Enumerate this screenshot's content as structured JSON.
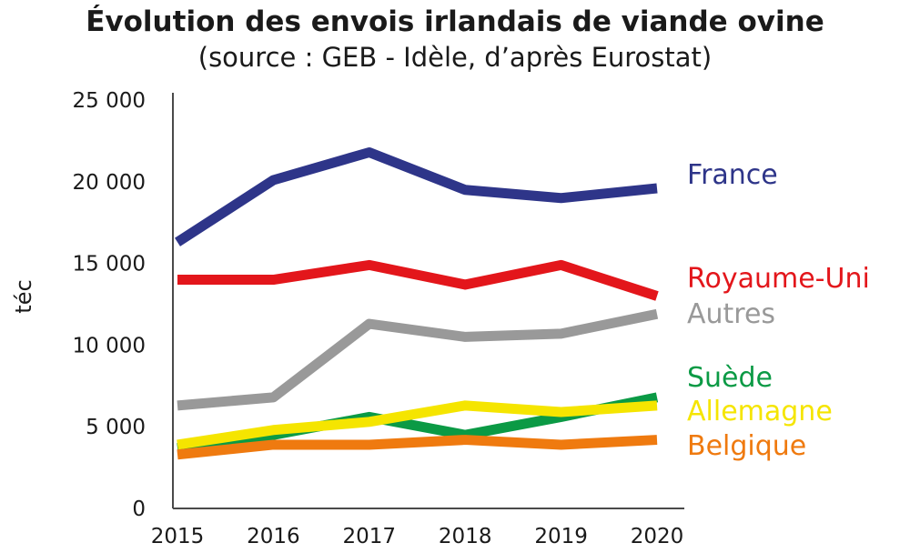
{
  "chart_data": {
    "type": "line",
    "title": "Évolution des envois irlandais de viande ovine",
    "subtitle": "(source : GEB - Idèle, d’après Eurostat)",
    "xlabel": "",
    "ylabel": "téc",
    "ylim": [
      0,
      25000
    ],
    "yticks": [
      0,
      5000,
      10000,
      15000,
      20000,
      25000
    ],
    "ytick_labels": [
      "0",
      "5 000",
      "10 000",
      "15 000",
      "20 000",
      "25 000"
    ],
    "categories": [
      "2015",
      "2016",
      "2017",
      "2018",
      "2019",
      "2020"
    ],
    "grid": false,
    "series": [
      {
        "name": "France",
        "color": "#2e3589",
        "values": [
          16300,
          20100,
          21800,
          19500,
          19000,
          19600
        ]
      },
      {
        "name": "Royaume-Uni",
        "color": "#e3161b",
        "values": [
          14000,
          14000,
          14900,
          13700,
          14900,
          13000
        ]
      },
      {
        "name": "Autres",
        "color": "#999999",
        "values": [
          6300,
          6800,
          11300,
          10500,
          10700,
          11900
        ]
      },
      {
        "name": "Suède",
        "color": "#0b9a45",
        "values": [
          3700,
          4500,
          5600,
          4500,
          5600,
          6800
        ]
      },
      {
        "name": "Allemagne",
        "color": "#f5e500",
        "values": [
          3900,
          4800,
          5300,
          6300,
          5900,
          6300
        ]
      },
      {
        "name": "Belgique",
        "color": "#ef7a0f",
        "values": [
          3300,
          3900,
          3900,
          4200,
          3900,
          4200
        ]
      }
    ]
  }
}
